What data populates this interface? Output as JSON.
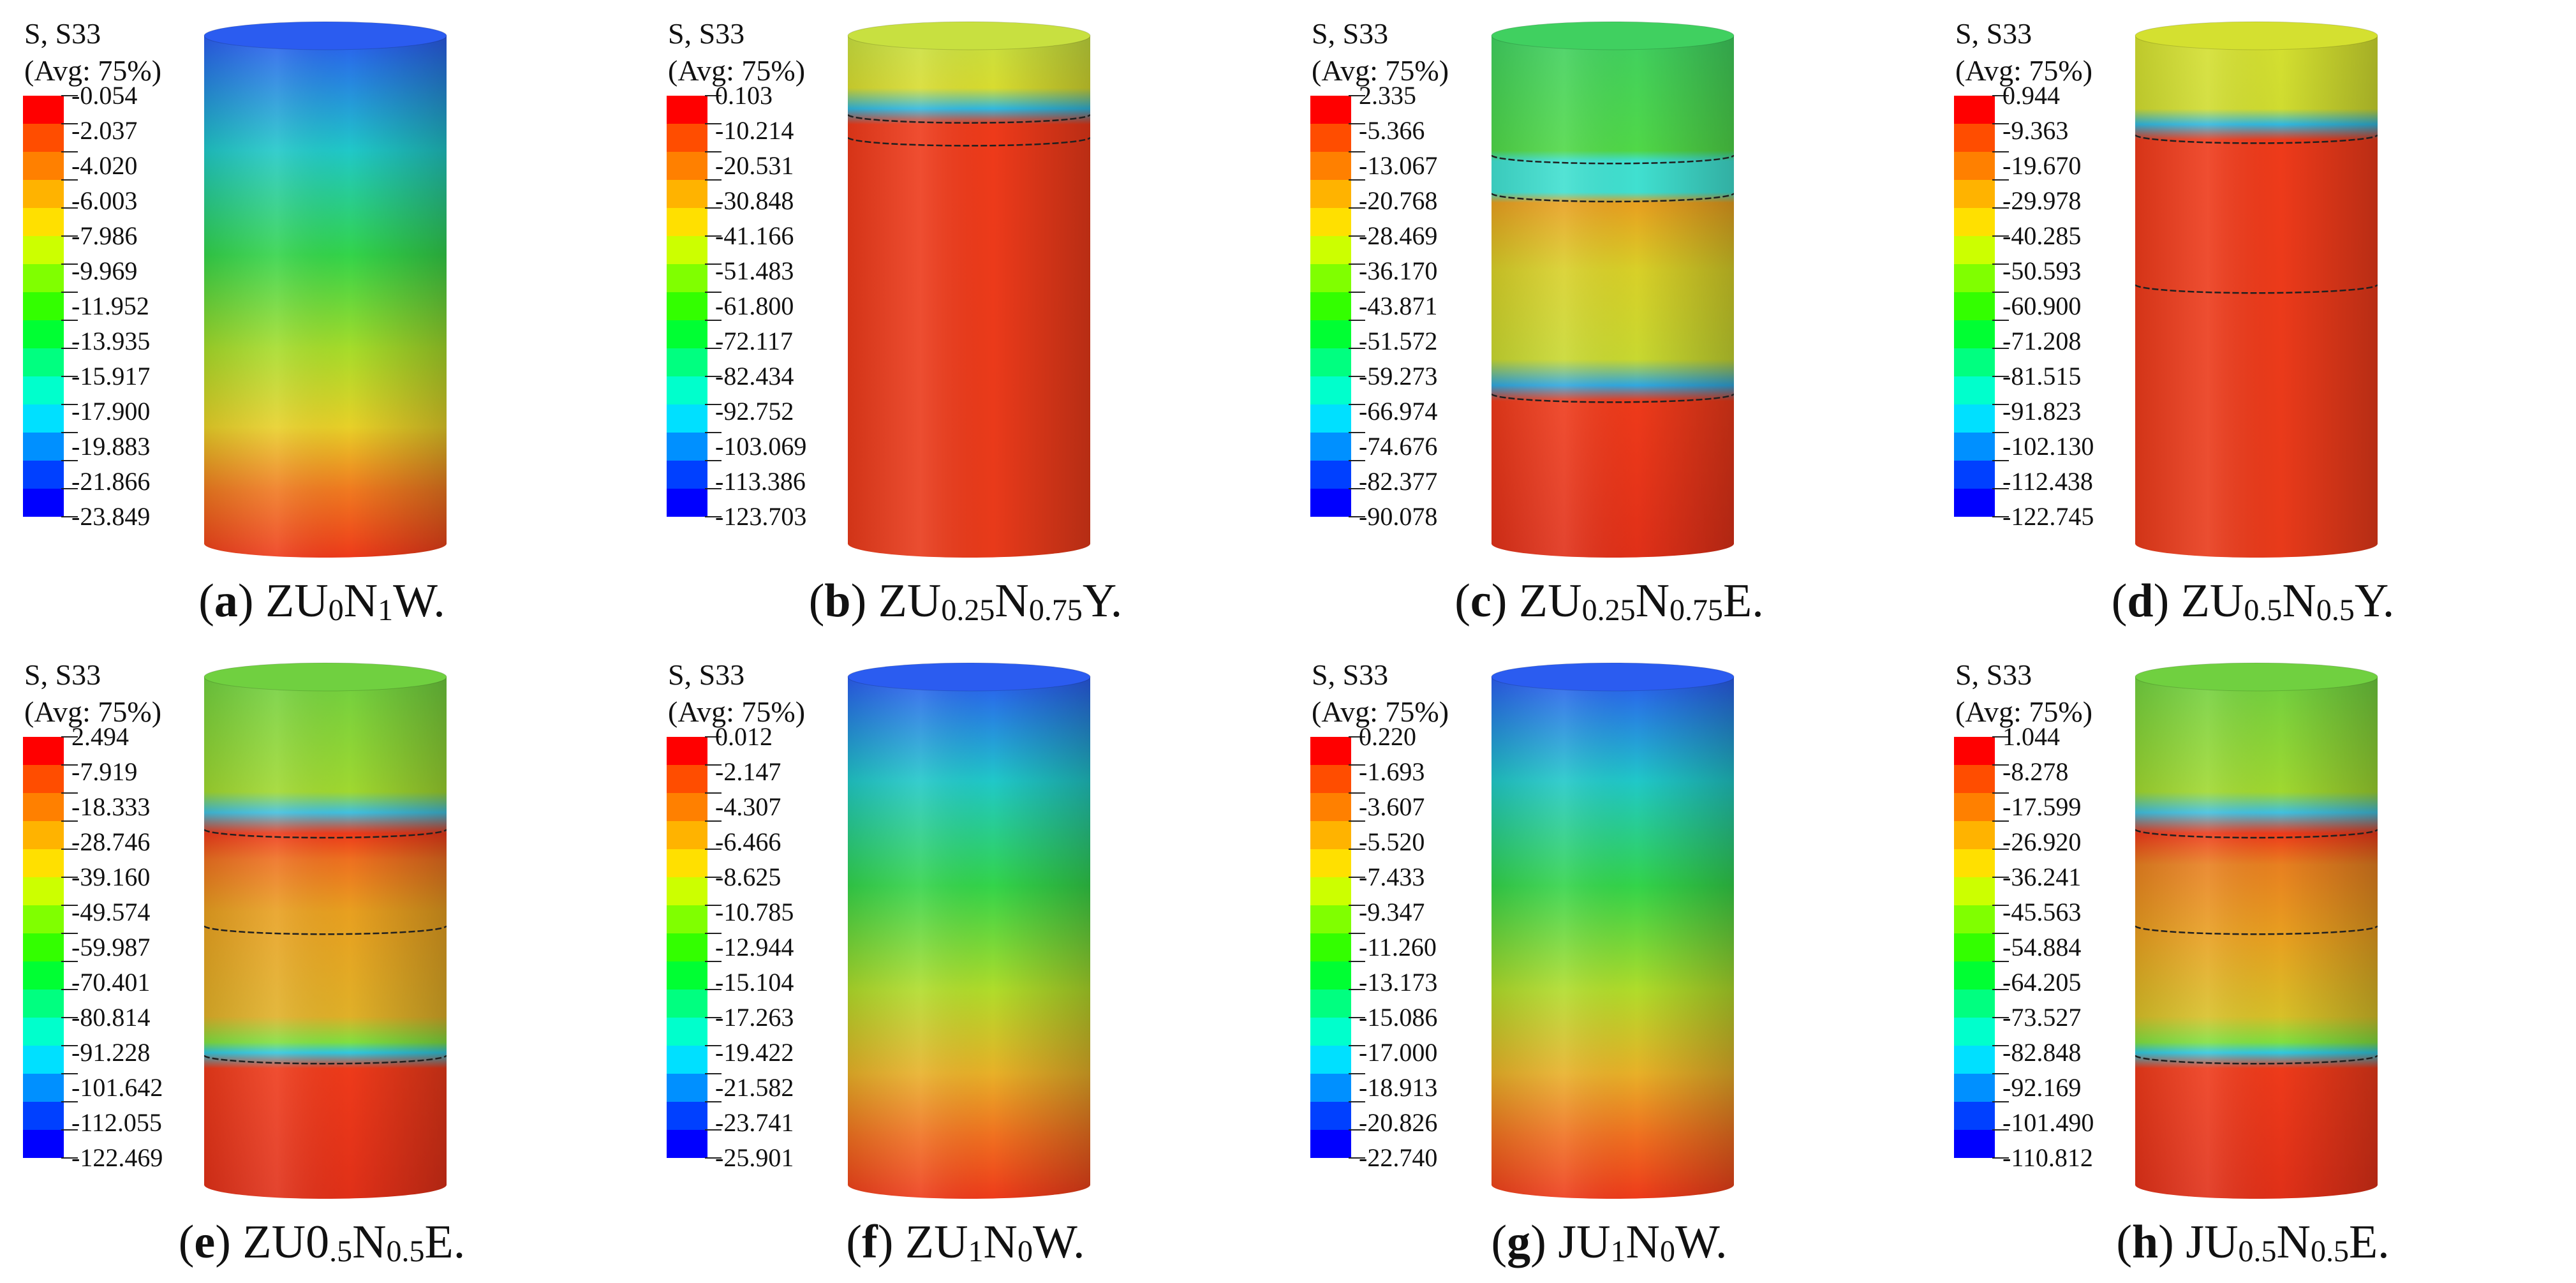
{
  "header_line1": "S, S33",
  "header_line2": "(Avg: 75%)",
  "legend_colors": [
    "#ff0000",
    "#ff4d00",
    "#ff8000",
    "#ffb300",
    "#ffe000",
    "#ccff00",
    "#80ff00",
    "#33ff00",
    "#00ff33",
    "#00ff80",
    "#00ffcc",
    "#00e0ff",
    "#0090ff",
    "#0040ff",
    "#0000ff"
  ],
  "panels": [
    {
      "id": "a",
      "caption_letter": "a",
      "caption_parts": [
        [
          "ZU",
          ""
        ],
        [
          "0",
          "s"
        ],
        [
          "N",
          ""
        ],
        [
          "1",
          "s"
        ],
        [
          "W.",
          ""
        ]
      ],
      "legend_values": [
        "-0.054",
        "-2.037",
        "-4.020",
        "-6.003",
        "-7.986",
        "-9.969",
        "-11.952",
        "-13.935",
        "-15.917",
        "-17.900",
        "-19.883",
        "-21.866",
        "-23.849"
      ],
      "cylinder_stops": [
        [
          0,
          "#2b5cf0"
        ],
        [
          0.22,
          "#20c8c8"
        ],
        [
          0.42,
          "#33d44a"
        ],
        [
          0.6,
          "#a6dc2a"
        ],
        [
          0.75,
          "#e8d028"
        ],
        [
          0.87,
          "#f07a20"
        ],
        [
          1,
          "#ee3a1a"
        ]
      ],
      "bands": []
    },
    {
      "id": "b",
      "caption_letter": "b",
      "caption_parts": [
        [
          "ZU",
          ""
        ],
        [
          "0.25",
          "s"
        ],
        [
          "N",
          ""
        ],
        [
          "0.75",
          "s"
        ],
        [
          "Y.",
          ""
        ]
      ],
      "legend_values": [
        "0.103",
        "-10.214",
        "-20.531",
        "-30.848",
        "-41.166",
        "-51.483",
        "-61.800",
        "-72.117",
        "-82.434",
        "-92.752",
        "-103.069",
        "-113.386",
        "-123.703"
      ],
      "cylinder_stops": [
        [
          0,
          "#c8e040"
        ],
        [
          0.1,
          "#d8dc30"
        ],
        [
          0.14,
          "#30b8e0"
        ],
        [
          0.17,
          "#ee3a1a"
        ],
        [
          1,
          "#e83a1a"
        ]
      ],
      "bands": [
        [
          0.155,
          "#202020"
        ],
        [
          0.2,
          "#202020"
        ]
      ]
    },
    {
      "id": "c",
      "caption_letter": "c",
      "caption_parts": [
        [
          "ZU",
          ""
        ],
        [
          "0.25",
          "s"
        ],
        [
          "N",
          ""
        ],
        [
          "0.75",
          "s"
        ],
        [
          "E.",
          ""
        ]
      ],
      "legend_values": [
        "2.335",
        "-5.366",
        "-13.067",
        "-20.768",
        "-28.469",
        "-36.170",
        "-43.871",
        "-51.572",
        "-59.273",
        "-66.974",
        "-74.676",
        "-82.377",
        "-90.078"
      ],
      "cylinder_stops": [
        [
          0,
          "#40d060"
        ],
        [
          0.22,
          "#50d848"
        ],
        [
          0.24,
          "#40e0d0"
        ],
        [
          0.3,
          "#40e0d0"
        ],
        [
          0.32,
          "#e8a020"
        ],
        [
          0.45,
          "#d8d028"
        ],
        [
          0.62,
          "#c8d830"
        ],
        [
          0.67,
          "#30a8e0"
        ],
        [
          0.7,
          "#ee3a1a"
        ],
        [
          1,
          "#e03018"
        ]
      ],
      "bands": [
        [
          0.235,
          "#202020"
        ],
        [
          0.31,
          "#202020"
        ],
        [
          0.705,
          "#202020"
        ]
      ]
    },
    {
      "id": "d",
      "caption_letter": "d",
      "caption_parts": [
        [
          "ZU",
          ""
        ],
        [
          "0.5",
          "s"
        ],
        [
          "N",
          ""
        ],
        [
          "0.5",
          "s"
        ],
        [
          "Y.",
          ""
        ]
      ],
      "legend_values": [
        "0.944",
        "-9.363",
        "-19.670",
        "-29.978",
        "-40.285",
        "-50.593",
        "-60.900",
        "-71.208",
        "-81.515",
        "-91.823",
        "-102.130",
        "-112.438",
        "-122.745"
      ],
      "cylinder_stops": [
        [
          0,
          "#d4e030"
        ],
        [
          0.14,
          "#d0dc30"
        ],
        [
          0.17,
          "#30b8e0"
        ],
        [
          0.2,
          "#ee3a1a"
        ],
        [
          1,
          "#e83a1a"
        ]
      ],
      "bands": [
        [
          0.195,
          "#202020"
        ],
        [
          0.49,
          "#202020"
        ]
      ]
    },
    {
      "id": "e",
      "caption_letter": "e",
      "caption_parts": [
        [
          "ZU0",
          ""
        ],
        [
          ".5",
          "s"
        ],
        [
          "N",
          ""
        ],
        [
          "0.5",
          "s"
        ],
        [
          "E.",
          ""
        ]
      ],
      "legend_values": [
        "2.494",
        "-7.919",
        "-18.333",
        "-28.746",
        "-39.160",
        "-49.574",
        "-59.987",
        "-70.401",
        "-80.814",
        "-91.228",
        "-101.642",
        "-112.055",
        "-122.469"
      ],
      "cylinder_stops": [
        [
          0,
          "#70d040"
        ],
        [
          0.22,
          "#a0d830"
        ],
        [
          0.26,
          "#40c0e0"
        ],
        [
          0.3,
          "#ee3a1a"
        ],
        [
          0.35,
          "#ee7020"
        ],
        [
          0.45,
          "#e8a020"
        ],
        [
          0.65,
          "#e0b028"
        ],
        [
          0.7,
          "#80e040"
        ],
        [
          0.72,
          "#30c8e0"
        ],
        [
          0.75,
          "#ee3a1a"
        ],
        [
          1,
          "#e03018"
        ]
      ],
      "bands": [
        [
          0.3,
          "#202020"
        ],
        [
          0.49,
          "#202020"
        ],
        [
          0.745,
          "#202020"
        ]
      ]
    },
    {
      "id": "f",
      "caption_letter": "f",
      "caption_parts": [
        [
          "ZU",
          ""
        ],
        [
          "1",
          "s"
        ],
        [
          "N",
          ""
        ],
        [
          "0",
          "s"
        ],
        [
          "W.",
          ""
        ]
      ],
      "legend_values": [
        "0.012",
        "-2.147",
        "-4.307",
        "-6.466",
        "-8.625",
        "-10.785",
        "-12.944",
        "-15.104",
        "-17.263",
        "-19.422",
        "-21.582",
        "-23.741",
        "-25.901"
      ],
      "cylinder_stops": [
        [
          0,
          "#2b5cf0"
        ],
        [
          0.2,
          "#20c8c8"
        ],
        [
          0.4,
          "#33d44a"
        ],
        [
          0.6,
          "#b0dc2a"
        ],
        [
          0.76,
          "#e8b028"
        ],
        [
          0.88,
          "#f07020"
        ],
        [
          1,
          "#ee3a1a"
        ]
      ],
      "bands": []
    },
    {
      "id": "g",
      "caption_letter": "g",
      "caption_parts": [
        [
          "JU",
          ""
        ],
        [
          "1",
          "s"
        ],
        [
          "N",
          ""
        ],
        [
          "0",
          "s"
        ],
        [
          "W.",
          ""
        ]
      ],
      "legend_values": [
        "0.220",
        "-1.693",
        "-3.607",
        "-5.520",
        "-7.433",
        "-9.347",
        "-11.260",
        "-13.173",
        "-15.086",
        "-17.000",
        "-18.913",
        "-20.826",
        "-22.740"
      ],
      "cylinder_stops": [
        [
          0,
          "#2b5cf0"
        ],
        [
          0.2,
          "#20c8c8"
        ],
        [
          0.4,
          "#33d44a"
        ],
        [
          0.6,
          "#b0dc2a"
        ],
        [
          0.76,
          "#e8b028"
        ],
        [
          0.88,
          "#f07020"
        ],
        [
          1,
          "#ee3a1a"
        ]
      ],
      "bands": []
    },
    {
      "id": "h",
      "caption_letter": "h",
      "caption_parts": [
        [
          "JU",
          ""
        ],
        [
          "0.5",
          "s"
        ],
        [
          "N",
          ""
        ],
        [
          "0.5",
          "s"
        ],
        [
          "E.",
          ""
        ]
      ],
      "legend_values": [
        "1.044",
        "-8.278",
        "-17.599",
        "-26.920",
        "-36.241",
        "-45.563",
        "-54.884",
        "-64.205",
        "-73.527",
        "-82.848",
        "-92.169",
        "-101.490",
        "-110.812"
      ],
      "cylinder_stops": [
        [
          0,
          "#70d040"
        ],
        [
          0.22,
          "#a0d830"
        ],
        [
          0.26,
          "#40c0e0"
        ],
        [
          0.3,
          "#ee3a1a"
        ],
        [
          0.36,
          "#e88020"
        ],
        [
          0.5,
          "#e8a020"
        ],
        [
          0.65,
          "#d8c028"
        ],
        [
          0.7,
          "#80e040"
        ],
        [
          0.72,
          "#30c8e0"
        ],
        [
          0.75,
          "#ee3a1a"
        ],
        [
          1,
          "#e03018"
        ]
      ],
      "bands": [
        [
          0.3,
          "#202020"
        ],
        [
          0.49,
          "#202020"
        ],
        [
          0.745,
          "#202020"
        ]
      ]
    }
  ]
}
